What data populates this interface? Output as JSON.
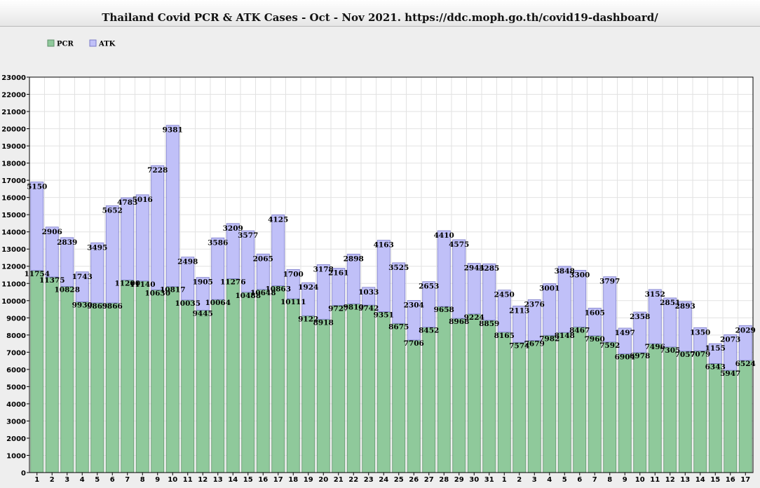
{
  "title": "Thailand Covid PCR & ATK Cases - Oct - Nov 2021. https://ddc.moph.go.th/covid19-dashboard/",
  "colors": {
    "pcr": "#8fc99b",
    "atk": "#c0c0f8",
    "grid": "#e2e2e2",
    "plot_bg": "#ffffff"
  },
  "chart_data": {
    "type": "bar",
    "stacked": true,
    "title": "Thailand Covid PCR & ATK Cases - Oct - Nov 2021. https://ddc.moph.go.th/covid19-dashboard/",
    "categories": [
      "1",
      "2",
      "3",
      "4",
      "5",
      "6",
      "7",
      "8",
      "9",
      "10",
      "11",
      "12",
      "13",
      "14",
      "15",
      "16",
      "17",
      "18",
      "19",
      "20",
      "21",
      "22",
      "23",
      "24",
      "25",
      "26",
      "27",
      "28",
      "29",
      "30",
      "31",
      "1",
      "2",
      "3",
      "4",
      "5",
      "6",
      "7",
      "8",
      "9",
      "10",
      "11",
      "12",
      "13",
      "14",
      "15",
      "16",
      "17"
    ],
    "series": [
      {
        "name": "PCR",
        "color": "#8fc99b",
        "values": [
          11754,
          11375,
          10828,
          9930,
          9869,
          9866,
          11200,
          11140,
          10630,
          10817,
          10035,
          9445,
          10064,
          11276,
          10488,
          10648,
          10863,
          10111,
          9122,
          8918,
          9727,
          9810,
          9742,
          9351,
          8675,
          7706,
          8452,
          9658,
          8968,
          9224,
          8859,
          8165,
          7574,
          7679,
          7982,
          8148,
          8467,
          7960,
          7592,
          6904,
          6978,
          7496,
          7305,
          7057,
          7079,
          6343,
          5947,
          6524
        ]
      },
      {
        "name": "ATK",
        "color": "#c0c0f8",
        "values": [
          5150,
          2906,
          2839,
          1743,
          3495,
          5652,
          4783,
          5016,
          7228,
          9381,
          2498,
          1905,
          3586,
          3209,
          3577,
          2065,
          4125,
          1700,
          1924,
          3178,
          2161,
          2898,
          1033,
          4163,
          3525,
          2304,
          2653,
          4410,
          4575,
          2944,
          3285,
          2450,
          2113,
          2376,
          3001,
          3848,
          3300,
          1605,
          3797,
          1497,
          2358,
          3152,
          2851,
          2893,
          1350,
          1155,
          2073,
          2029
        ]
      }
    ],
    "ylim": [
      0,
      23000
    ],
    "ytick_step": 1000,
    "xlabel": "",
    "ylabel": "",
    "grid": true,
    "legend_position": "top-left"
  }
}
